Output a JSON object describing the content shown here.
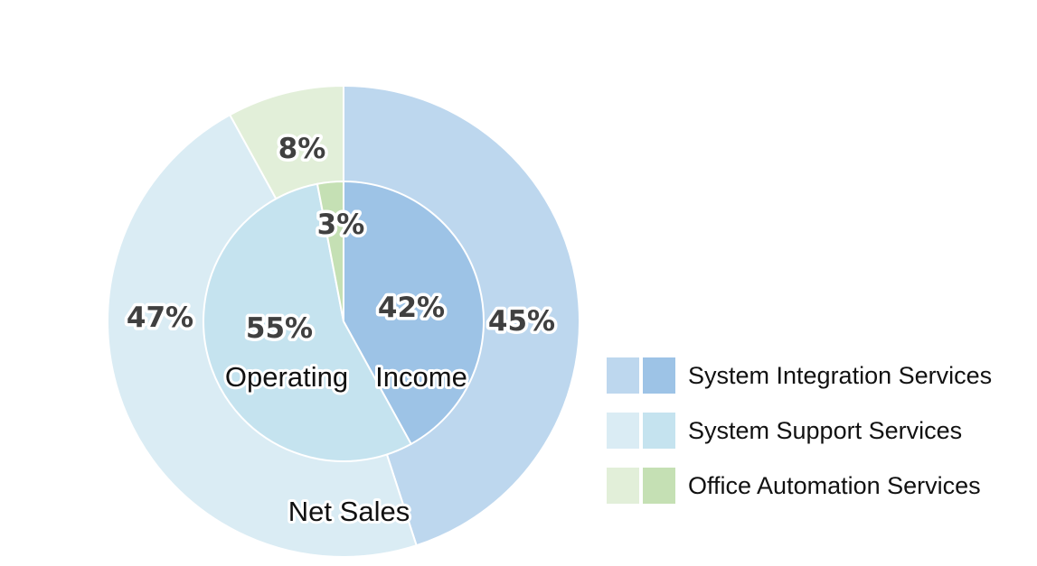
{
  "chart_data": {
    "type": "pie",
    "style": "nested-donut",
    "categories": [
      "System Integration Services",
      "System Support Services",
      "Office Automation Services"
    ],
    "series": [
      {
        "name": "Net Sales",
        "ring": "outer",
        "values": [
          45,
          47,
          8
        ],
        "labels": [
          "45%",
          "47%",
          "8%"
        ],
        "colors": [
          "#bdd7ee",
          "#daecf4",
          "#e2efd9"
        ]
      },
      {
        "name": "Operating Income",
        "ring": "inner",
        "values": [
          42,
          55,
          3
        ],
        "labels": [
          "42%",
          "55%",
          "3%"
        ],
        "colors": [
          "#9dc3e6",
          "#c5e3ef",
          "#c5e0b4"
        ]
      }
    ],
    "ring_labels": {
      "inner_left": "Operating",
      "inner_right": "Income",
      "outer": "Net Sales"
    },
    "legend": {
      "position": "bottom-right",
      "entries": [
        {
          "label": "System Integration Services",
          "colors": [
            "#bdd7ee",
            "#9dc3e6"
          ]
        },
        {
          "label": "System Support Services",
          "colors": [
            "#daecf4",
            "#c5e3ef"
          ]
        },
        {
          "label": "Office Automation Services",
          "colors": [
            "#e2efd9",
            "#c5e0b4"
          ]
        }
      ]
    }
  }
}
